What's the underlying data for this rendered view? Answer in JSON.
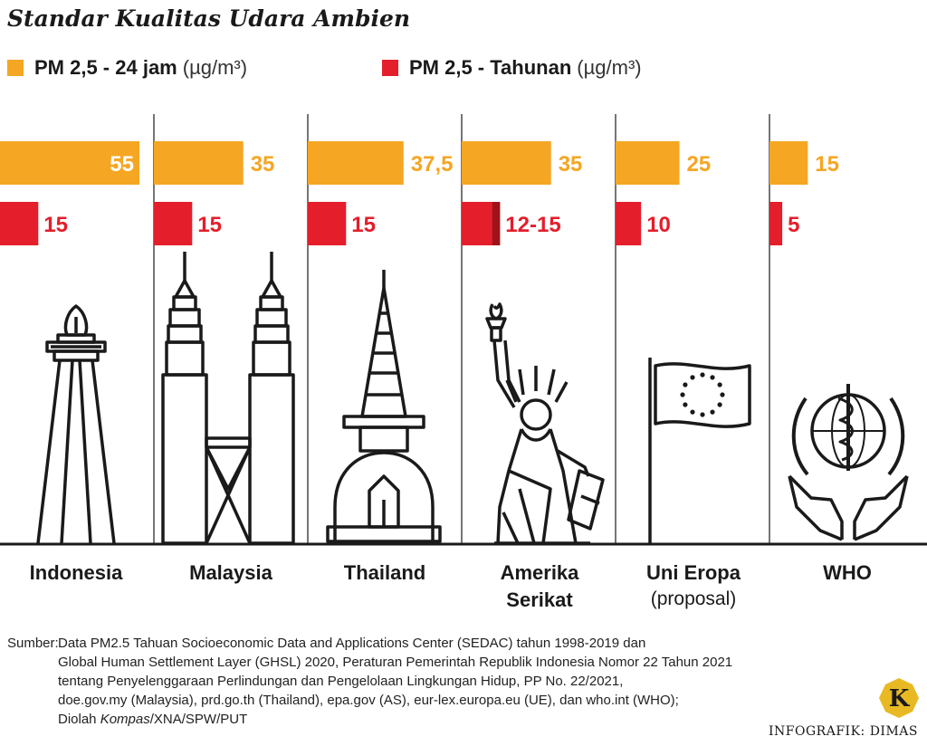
{
  "title": "Standar Kualitas Udara Ambien",
  "legend": {
    "daily": {
      "label": "PM 2,5 - 24 jam",
      "unit": "(µg/m³)",
      "color": "#F5A623"
    },
    "annual": {
      "label": "PM 2,5 - Tahunan",
      "unit": "(µg/m³)",
      "color": "#E41E2B"
    }
  },
  "chart_data": {
    "type": "bar",
    "categories": [
      "Indonesia",
      "Malaysia",
      "Thailand",
      "Amerika Serikat",
      "Uni Eropa",
      "WHO"
    ],
    "series": [
      {
        "name": "PM 2,5 - 24 jam (µg/m³)",
        "values": [
          55,
          35,
          37.5,
          35,
          25,
          15
        ],
        "labels": [
          "55",
          "35",
          "37,5",
          "35",
          "25",
          "15"
        ]
      },
      {
        "name": "PM 2,5 - Tahunan (µg/m³)",
        "values": [
          15,
          15,
          15,
          15,
          10,
          5
        ],
        "value_min": [
          15,
          15,
          15,
          12,
          10,
          5
        ],
        "labels": [
          "15",
          "15",
          "15",
          "12-15",
          "10",
          "5"
        ]
      }
    ]
  },
  "countries": [
    {
      "name": "Indonesia",
      "icon": "monas-icon"
    },
    {
      "name": "Malaysia",
      "icon": "petronas-towers-icon"
    },
    {
      "name": "Thailand",
      "icon": "thai-stupa-icon"
    },
    {
      "name": "Amerika",
      "name2": "Serikat",
      "icon": "statue-of-liberty-icon"
    },
    {
      "name": "Uni Eropa",
      "sub": "(proposal)",
      "icon": "eu-flag-icon"
    },
    {
      "name": "WHO",
      "icon": "who-emblem-icon"
    }
  ],
  "source": {
    "lead": "Sumber:",
    "lines": [
      "Data PM2.5 Tahuan Socioeconomic Data and Applications Center (SEDAC) tahun 1998-2019 dan",
      "Global Human Settlement Layer (GHSL) 2020, Peraturan Pemerintah Republik Indonesia Nomor 22 Tahun 2021",
      "tentang Penyelenggaraan Perlindungan dan Pengelolaan Lingkungan Hidup, PP No. 22/2021,",
      "doe.gov.my (Malaysia), prd.go.th (Thailand), epa.gov (AS), eur-lex.europa.eu (UE), dan who.int (WHO);"
    ],
    "last_prefix": "Diolah ",
    "last_italic": "Kompas",
    "last_suffix": "/XNA/SPW/PUT"
  },
  "credit": "INFOGRAFIK: DIMAS",
  "logo_letter": "K",
  "colors": {
    "line": "#1a1a1a",
    "annual_dark": "#9E1219",
    "logo": "#E8B923"
  }
}
